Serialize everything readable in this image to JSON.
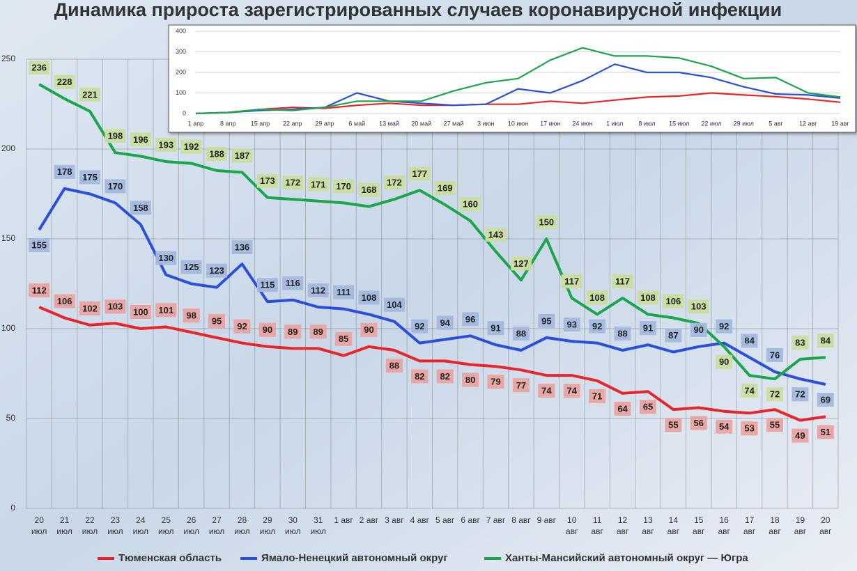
{
  "chart_data": [
    {
      "type": "line",
      "title": "Динамика прироста зарегистрированных случаев коронавирусной инфекции",
      "categories": [
        "20 июл",
        "21 июл",
        "22 июл",
        "23 июл",
        "24 июл",
        "25 июл",
        "26 июл",
        "27 июл",
        "28 июл",
        "29 июл",
        "30 июл",
        "31 июл",
        "1 авг",
        "2 авг",
        "3 авг",
        "4 авг",
        "5 авг",
        "6 авг",
        "7 авг",
        "8 авг",
        "9 авг",
        "10 авг",
        "11 авг",
        "12 авг",
        "13 авг",
        "14 авг",
        "15 авг",
        "16 авг",
        "17 авг",
        "18 авг",
        "19 авг",
        "20 авг"
      ],
      "series": [
        {
          "name": "Тюменская область",
          "color": "#e8262a",
          "values": [
            112,
            106,
            102,
            103,
            100,
            101,
            98,
            95,
            92,
            90,
            89,
            89,
            85,
            90,
            88,
            82,
            82,
            80,
            79,
            77,
            74,
            74,
            71,
            64,
            65,
            55,
            56,
            54,
            53,
            55,
            49,
            51
          ]
        },
        {
          "name": "Ямало-Ненецкий автономный округ",
          "color": "#2a4fd8",
          "values": [
            155,
            178,
            175,
            170,
            158,
            130,
            125,
            123,
            136,
            115,
            116,
            112,
            111,
            108,
            104,
            92,
            94,
            96,
            91,
            88,
            95,
            93,
            92,
            88,
            91,
            87,
            90,
            92,
            84,
            76,
            72,
            69
          ]
        },
        {
          "name": "Ханты-Мансийский автономный округ — Югра",
          "color": "#1aa64a",
          "values": [
            236,
            228,
            221,
            198,
            196,
            193,
            192,
            188,
            187,
            173,
            172,
            171,
            170,
            168,
            172,
            177,
            169,
            160,
            143,
            127,
            150,
            117,
            108,
            117,
            108,
            106,
            103,
            90,
            74,
            72,
            83,
            84
          ]
        }
      ],
      "ylim": [
        0,
        250
      ],
      "yticks": [
        0,
        50,
        100,
        150,
        200,
        250
      ],
      "grid": true
    },
    {
      "type": "line",
      "categories": [
        "1 апр",
        "8 апр",
        "15 апр",
        "22 апр",
        "29 апр",
        "6 май",
        "13 май",
        "20 май",
        "27 май",
        "3 июн",
        "10 июн",
        "17 июн",
        "24 июн",
        "1 июл",
        "8 июл",
        "15 июл",
        "22 июл",
        "29 июл",
        "5 авг",
        "12 авг",
        "19 авг"
      ],
      "series": [
        {
          "color": "#e8262a",
          "values": [
            0,
            5,
            20,
            30,
            25,
            40,
            50,
            40,
            40,
            45,
            45,
            60,
            50,
            65,
            80,
            85,
            100,
            90,
            82,
            70,
            55
          ]
        },
        {
          "color": "#2a4fd8",
          "values": [
            0,
            5,
            15,
            20,
            30,
            100,
            60,
            50,
            40,
            45,
            120,
            100,
            160,
            240,
            200,
            200,
            175,
            130,
            95,
            90,
            75
          ]
        },
        {
          "color": "#1aa64a",
          "values": [
            0,
            5,
            20,
            15,
            30,
            60,
            60,
            60,
            110,
            150,
            170,
            260,
            320,
            280,
            280,
            270,
            230,
            170,
            175,
            100,
            80
          ]
        }
      ],
      "ylim": [
        0,
        400
      ],
      "yticks": [
        0,
        100,
        200,
        300,
        400
      ],
      "grid": true
    }
  ]
}
